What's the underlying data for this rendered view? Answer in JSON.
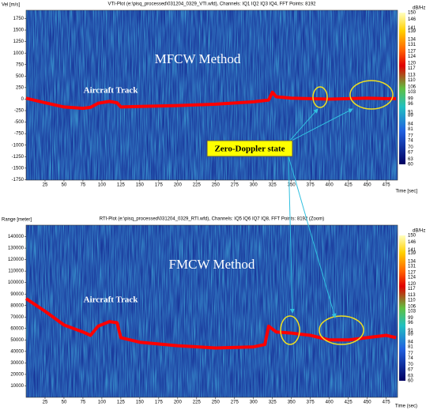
{
  "callout": "Zero-Doppler state",
  "chart_data": [
    {
      "type": "line",
      "title": "VTI-Plot (e:\\pisq_processed\\031204_0329_VTI.wfd), Channels: IQ1 IQ2 IQ3 IQ4, FFT Points: 8192",
      "y_label": "Vel [m/s]",
      "x_label": "Time [sec]",
      "annotations": [
        "MFCW Method",
        "Aircraft Track"
      ],
      "x": [
        0,
        25,
        50,
        75,
        85,
        95,
        110,
        120,
        125,
        150,
        200,
        250,
        300,
        320,
        325,
        330,
        350,
        375,
        400,
        425,
        450,
        475,
        488
      ],
      "values": [
        20,
        -80,
        -170,
        -200,
        -180,
        -90,
        -50,
        -80,
        -170,
        -160,
        -140,
        -110,
        -60,
        -20,
        150,
        50,
        20,
        10,
        0,
        10,
        20,
        10,
        10
      ],
      "color": "#ff0000",
      "xlim": [
        0,
        490
      ],
      "xticks": [
        25,
        50,
        75,
        100,
        125,
        150,
        175,
        200,
        225,
        250,
        275,
        300,
        325,
        350,
        375,
        400,
        425,
        450,
        475
      ],
      "ylim": [
        -1760,
        1930
      ],
      "yticks": [
        1750,
        1500,
        1250,
        1000,
        750,
        500,
        250,
        0,
        -250,
        -500,
        -750,
        -1000,
        -1250,
        -1500,
        -1750
      ],
      "colorbar": {
        "label": "dB/Hz",
        "lim": [
          60,
          150
        ],
        "ticks": [
          150,
          146,
          141,
          139,
          134,
          131,
          127,
          124,
          120,
          117,
          113,
          110,
          106,
          103,
          99,
          96,
          91,
          89,
          84,
          81,
          77,
          74,
          70,
          67,
          63,
          60
        ]
      }
    },
    {
      "type": "line",
      "title": "RTI-Plot (e:\\pisq_processed\\031204_0329_RTI.wfd), Channels: IQ5 IQ6 IQ7 IQ8, FFT Points: 8192 (Zoom)",
      "y_label": "Range [meter]",
      "x_label": "Time (sec)",
      "annotations": [
        "FMCW Method",
        "Aircraft Track"
      ],
      "x": [
        0,
        25,
        50,
        75,
        85,
        95,
        110,
        120,
        125,
        150,
        200,
        250,
        300,
        315,
        320,
        330,
        350,
        375,
        400,
        425,
        450,
        475,
        488
      ],
      "values": [
        86000,
        75000,
        63000,
        57000,
        54000,
        62000,
        66000,
        65000,
        52000,
        48000,
        45000,
        43000,
        44000,
        46000,
        62000,
        57000,
        56000,
        54000,
        50000,
        50000,
        52000,
        54000,
        52000
      ],
      "color": "#ff0000",
      "xlim": [
        0,
        490
      ],
      "xticks": [
        25,
        50,
        75,
        100,
        125,
        150,
        175,
        200,
        225,
        250,
        275,
        300,
        325,
        350,
        375,
        400,
        425,
        450,
        475
      ],
      "ylim": [
        0,
        150000
      ],
      "yticks": [
        10000,
        20000,
        30000,
        40000,
        50000,
        60000,
        70000,
        80000,
        90000,
        100000,
        110000,
        120000,
        130000,
        140000
      ],
      "colorbar": {
        "label": "dB/Hz",
        "lim": [
          60,
          150
        ],
        "ticks": [
          150,
          146,
          141,
          139,
          134,
          131,
          127,
          124,
          120,
          117,
          113,
          110,
          106,
          103,
          99,
          96,
          91,
          89,
          84,
          81,
          77,
          74,
          70,
          67,
          63,
          60
        ]
      }
    }
  ]
}
